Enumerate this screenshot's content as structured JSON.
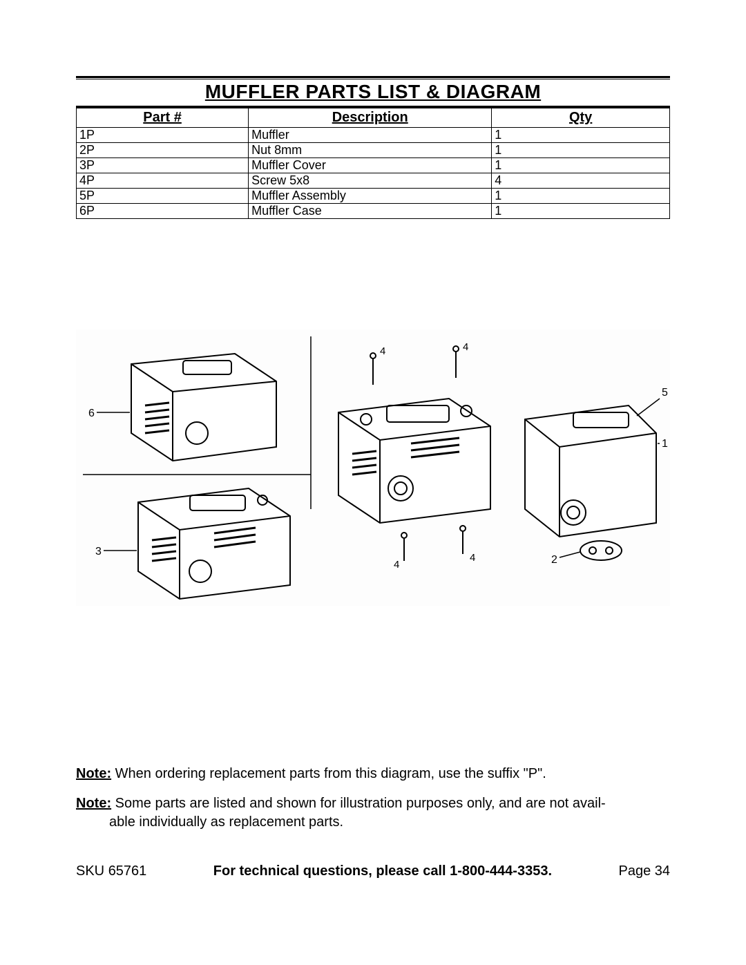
{
  "title": "MUFFLER PARTS LIST & DIAGRAM",
  "table": {
    "headers": {
      "part": "Part #",
      "desc": "Description",
      "qty": "Qty"
    },
    "rows": [
      {
        "part": "1P",
        "desc": "Muffler",
        "qty": "1"
      },
      {
        "part": "2P",
        "desc": "Nut 8mm",
        "qty": "1"
      },
      {
        "part": "3P",
        "desc": "Muffler Cover",
        "qty": "1"
      },
      {
        "part": "4P",
        "desc": "Screw 5x8",
        "qty": "4"
      },
      {
        "part": "5P",
        "desc": "Muffler Assembly",
        "qty": "1"
      },
      {
        "part": "6P",
        "desc": "Muffler Case",
        "qty": "1"
      }
    ]
  },
  "diagram": {
    "type": "exploded-parts-illustration",
    "callouts": [
      "1",
      "2",
      "3",
      "4",
      "5",
      "6"
    ],
    "placeholder_text": "[ Muffler exploded-view line drawing with callouts 1–6 ]"
  },
  "notes": {
    "label": "Note:",
    "note1": " When ordering replacement parts from this diagram, use the suffix \"P\".",
    "note2a": "  Some parts are listed and shown for illustration purposes only, and are not avail-",
    "note2b": "able individually as replacement parts."
  },
  "footer": {
    "sku_label": "SKU ",
    "sku": "65761",
    "mid": "For technical questions, please call 1-800-444-3353.",
    "page_label": "Page ",
    "page": "34"
  }
}
